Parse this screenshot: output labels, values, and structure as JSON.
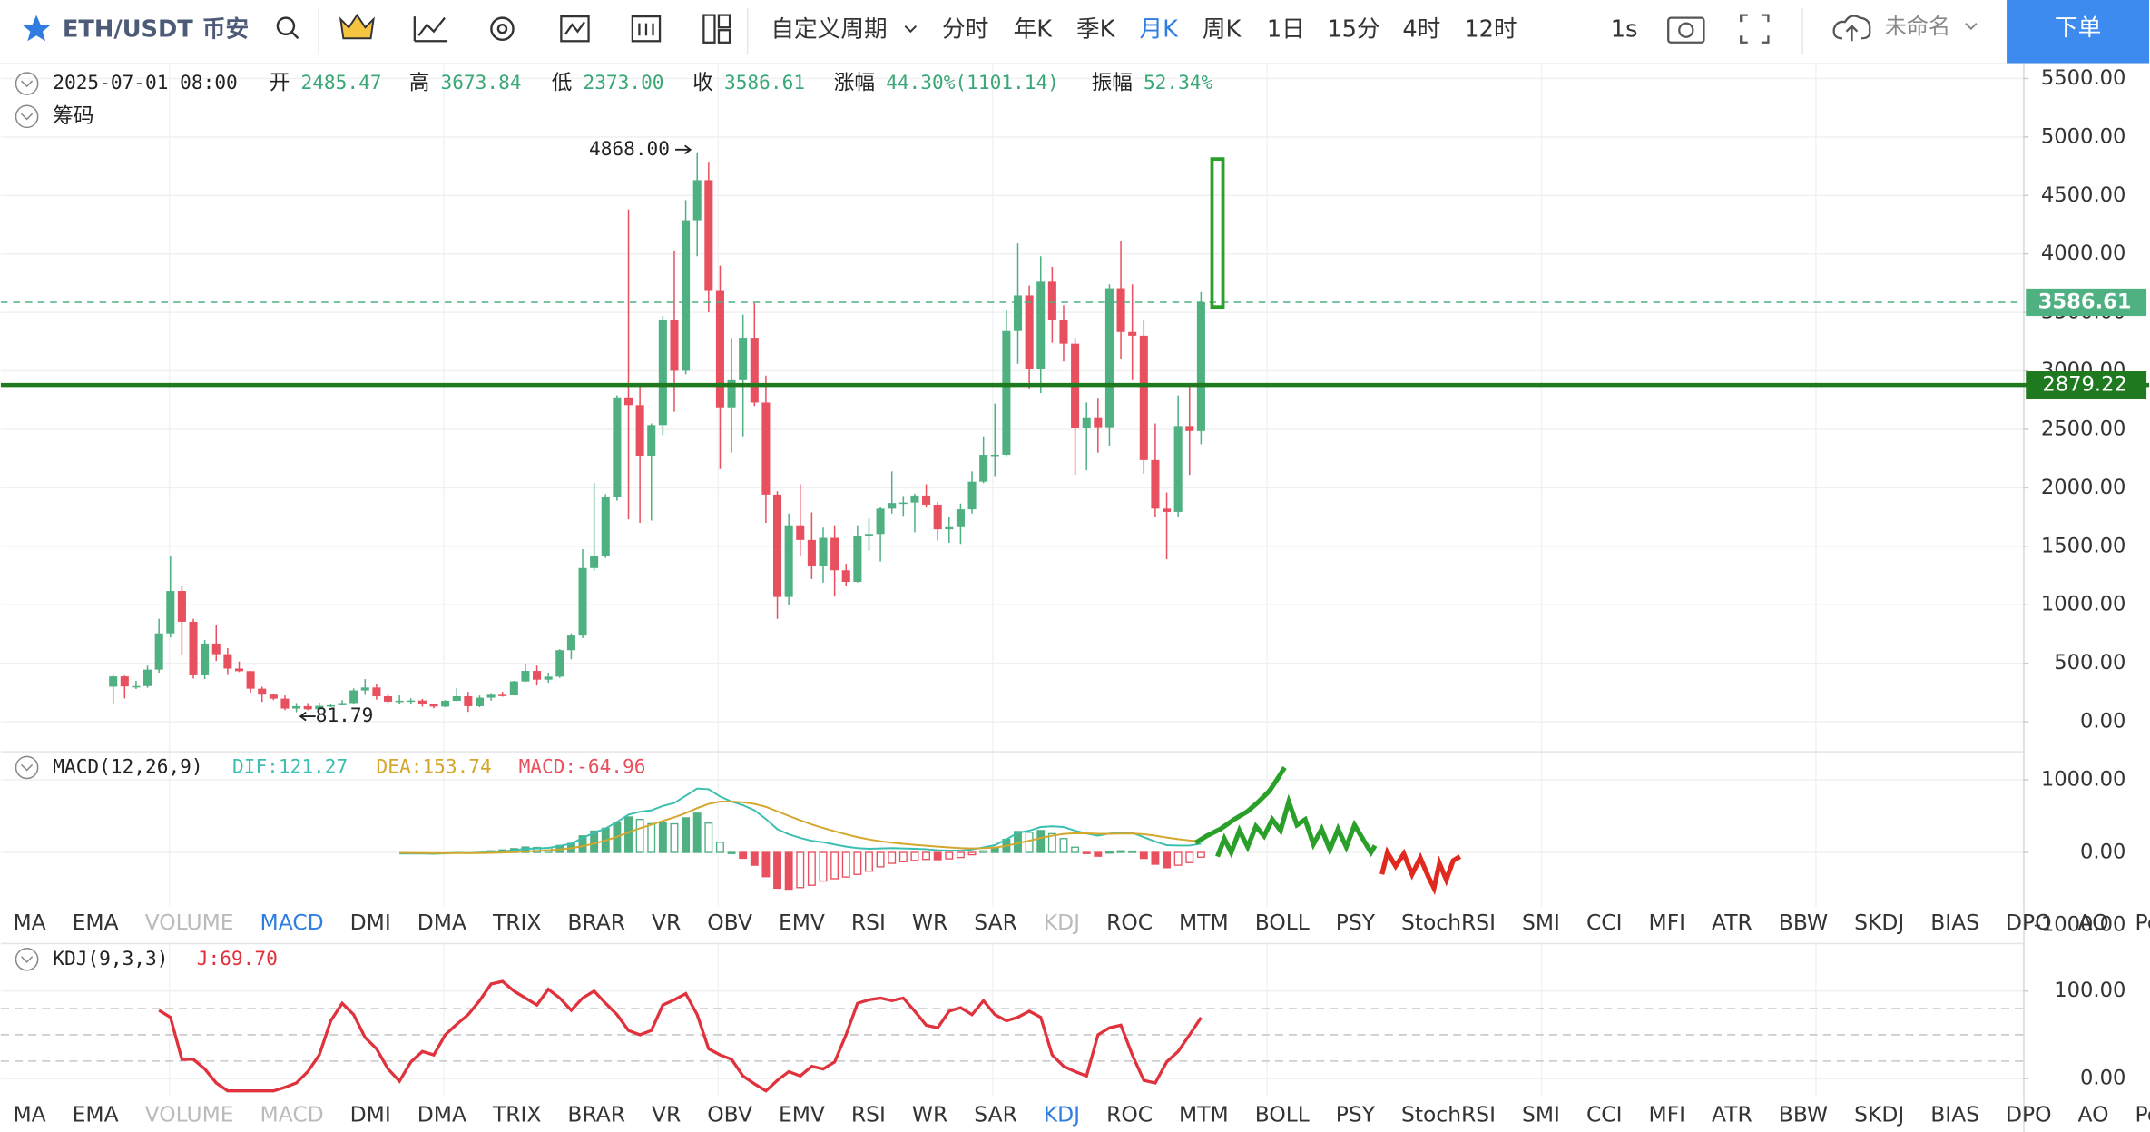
{
  "toolbar": {
    "symbol": "ETH/USDT",
    "exchange": "币安",
    "periods": [
      "自定义周期",
      "分时",
      "年K",
      "季K",
      "月K",
      "周K",
      "1日",
      "15分",
      "4时",
      "12时"
    ],
    "active_period": "月K",
    "interval_button": "1s",
    "layout_name": "未命名",
    "order_button": "下单"
  },
  "info": {
    "datetime": "2025-07-01 08:00",
    "fields": [
      {
        "label": "开",
        "value": "2485.47"
      },
      {
        "label": "高",
        "value": "3673.84"
      },
      {
        "label": "低",
        "value": "2373.00"
      },
      {
        "label": "收",
        "value": "3586.61"
      },
      {
        "label": "涨幅",
        "value": "44.30%(1101.14)"
      },
      {
        "label": "振幅",
        "value": "52.34%"
      }
    ],
    "chips_label": "筹码"
  },
  "price_pane": {
    "type": "candlestick",
    "up_color": "#4fb082",
    "down_color": "#e8505f",
    "ylim": [
      -250,
      5620
    ],
    "yticks": [
      {
        "value": 0,
        "label": "0.00"
      },
      {
        "value": 500,
        "label": "500.00"
      },
      {
        "value": 1000,
        "label": "1000.00"
      },
      {
        "value": 1500,
        "label": "1500.00"
      },
      {
        "value": 2000,
        "label": "2000.00"
      },
      {
        "value": 2500,
        "label": "2500.00"
      },
      {
        "value": 3000,
        "label": "3000.00"
      },
      {
        "value": 3500,
        "label": "3500.00"
      },
      {
        "value": 4000,
        "label": "4000.00"
      },
      {
        "value": 4500,
        "label": "4500.00"
      },
      {
        "value": 5000,
        "label": "5000.00"
      },
      {
        "value": 5500,
        "label": "5500.00"
      }
    ],
    "candles": [
      [
        300,
        400,
        150,
        388
      ],
      [
        388,
        395,
        200,
        302
      ],
      [
        302,
        350,
        280,
        305
      ],
      [
        305,
        480,
        290,
        446
      ],
      [
        446,
        880,
        420,
        756
      ],
      [
        756,
        1420,
        720,
        1118
      ],
      [
        1118,
        1160,
        570,
        855
      ],
      [
        855,
        880,
        370,
        397
      ],
      [
        397,
        700,
        365,
        669
      ],
      [
        669,
        830,
        520,
        578
      ],
      [
        578,
        630,
        400,
        455
      ],
      [
        455,
        515,
        425,
        433
      ],
      [
        433,
        435,
        250,
        283
      ],
      [
        283,
        300,
        170,
        232
      ],
      [
        232,
        235,
        185,
        198
      ],
      [
        198,
        225,
        100,
        113
      ],
      [
        113,
        160,
        81.79,
        133
      ],
      [
        133,
        160,
        100,
        107
      ],
      [
        107,
        165,
        100,
        136
      ],
      [
        136,
        150,
        125,
        141
      ],
      [
        141,
        185,
        140,
        160
      ],
      [
        160,
        285,
        155,
        268
      ],
      [
        268,
        365,
        230,
        293
      ],
      [
        293,
        320,
        190,
        218
      ],
      [
        218,
        240,
        160,
        172
      ],
      [
        172,
        225,
        150,
        180
      ],
      [
        180,
        200,
        150,
        182
      ],
      [
        182,
        195,
        130,
        152
      ],
      [
        152,
        155,
        115,
        130
      ],
      [
        130,
        185,
        125,
        179
      ],
      [
        179,
        290,
        175,
        218
      ],
      [
        218,
        255,
        85,
        133
      ],
      [
        133,
        225,
        125,
        206
      ],
      [
        206,
        245,
        180,
        231
      ],
      [
        231,
        255,
        215,
        226
      ],
      [
        226,
        350,
        225,
        345
      ],
      [
        345,
        490,
        340,
        435
      ],
      [
        435,
        480,
        310,
        360
      ],
      [
        360,
        420,
        335,
        386
      ],
      [
        386,
        620,
        375,
        612
      ],
      [
        612,
        755,
        535,
        737
      ],
      [
        737,
        1475,
        715,
        1314
      ],
      [
        1314,
        2040,
        1290,
        1417
      ],
      [
        1417,
        1945,
        1400,
        1918
      ],
      [
        1918,
        2790,
        1890,
        2773
      ],
      [
        2773,
        4380,
        1730,
        2707
      ],
      [
        2707,
        2890,
        1700,
        2275
      ],
      [
        2275,
        2550,
        1720,
        2536
      ],
      [
        2536,
        3470,
        2450,
        3433
      ],
      [
        3433,
        4030,
        2650,
        3001
      ],
      [
        3001,
        4460,
        2970,
        4288
      ],
      [
        4288,
        4868,
        3980,
        4631
      ],
      [
        4631,
        4780,
        3500,
        3683
      ],
      [
        3683,
        3900,
        2160,
        2688
      ],
      [
        2688,
        3280,
        2300,
        2920
      ],
      [
        2920,
        3480,
        2440,
        3283
      ],
      [
        3283,
        3580,
        2700,
        2729
      ],
      [
        2729,
        2960,
        1700,
        1942
      ],
      [
        1942,
        1970,
        880,
        1067
      ],
      [
        1067,
        1780,
        1000,
        1679
      ],
      [
        1679,
        2030,
        1420,
        1554
      ],
      [
        1554,
        1790,
        1220,
        1328
      ],
      [
        1328,
        1660,
        1190,
        1572
      ],
      [
        1572,
        1680,
        1070,
        1295
      ],
      [
        1295,
        1350,
        1160,
        1196
      ],
      [
        1196,
        1680,
        1190,
        1585
      ],
      [
        1585,
        1740,
        1460,
        1605
      ],
      [
        1605,
        1840,
        1370,
        1822
      ],
      [
        1822,
        2140,
        1780,
        1870
      ],
      [
        1870,
        1930,
        1760,
        1874
      ],
      [
        1874,
        1950,
        1620,
        1934
      ],
      [
        1934,
        2030,
        1830,
        1856
      ],
      [
        1856,
        1880,
        1550,
        1645
      ],
      [
        1645,
        1750,
        1530,
        1671
      ],
      [
        1671,
        1865,
        1520,
        1816
      ],
      [
        1816,
        2140,
        1780,
        2052
      ],
      [
        2052,
        2440,
        2040,
        2282
      ],
      [
        2282,
        2720,
        2100,
        2283
      ],
      [
        2283,
        3520,
        2270,
        3340
      ],
      [
        3340,
        4090,
        3060,
        3645
      ],
      [
        3645,
        3730,
        2850,
        3014
      ],
      [
        3014,
        3980,
        2810,
        3762
      ],
      [
        3762,
        3890,
        3240,
        3433
      ],
      [
        3433,
        3560,
        3080,
        3232
      ],
      [
        3232,
        3280,
        2110,
        2513
      ],
      [
        2513,
        2730,
        2150,
        2603
      ],
      [
        2603,
        2770,
        2300,
        2518
      ],
      [
        2518,
        3740,
        2360,
        3706
      ],
      [
        3706,
        4110,
        3100,
        3332
      ],
      [
        3332,
        3740,
        2920,
        3300
      ],
      [
        3300,
        3440,
        2120,
        2237
      ],
      [
        2237,
        2550,
        1750,
        1822
      ],
      [
        1822,
        1960,
        1390,
        1794
      ],
      [
        1794,
        2790,
        1750,
        2528
      ],
      [
        2528,
        2880,
        2110,
        2485.47
      ],
      [
        2485.47,
        3673.84,
        2373.0,
        3586.61
      ]
    ],
    "last_price": {
      "value": 3586.61,
      "label": "3586.61"
    },
    "horizontal_line": {
      "value": 2879.22,
      "label": "2879.22"
    },
    "annotations": [
      {
        "value": 4868,
        "label": "4868.00",
        "side": "high"
      },
      {
        "value": 81.79,
        "label": "81.79",
        "side": "low"
      }
    ]
  },
  "macd_pane": {
    "type": "macd",
    "legend": [
      "MACD(12,26,9)",
      "DIF:121.27",
      "DEA:153.74",
      "MACD:-64.96"
    ],
    "dif_color": "#3bbfb0",
    "dea_color": "#d4a72c",
    "up_color": "#4fb082",
    "down_color": "#e8505f",
    "ylim": [
      -1245,
      1396
    ],
    "yticks": [
      {
        "value": 1000,
        "label": "1000.00"
      },
      {
        "value": 0,
        "label": "0.00"
      },
      {
        "value": -1000,
        "label": "-1000.00"
      }
    ],
    "dif": [
      null,
      null,
      null,
      null,
      null,
      null,
      null,
      null,
      null,
      null,
      null,
      null,
      null,
      null,
      null,
      null,
      null,
      null,
      null,
      null,
      null,
      null,
      null,
      null,
      null,
      -15,
      -15,
      -15,
      -18,
      -12,
      -5,
      -10,
      -3,
      5,
      15,
      30,
      50,
      55,
      62,
      90,
      120,
      200,
      270,
      330,
      420,
      520,
      560,
      580,
      640,
      680,
      780,
      880,
      870,
      770,
      700,
      650,
      580,
      460,
      320,
      250,
      200,
      160,
      140,
      110,
      80,
      60,
      50,
      55,
      60,
      55,
      50,
      45,
      30,
      25,
      25,
      40,
      70,
      100,
      180,
      270,
      300,
      350,
      360,
      350,
      300,
      260,
      230,
      260,
      270,
      270,
      210,
      150,
      100,
      95,
      95,
      121.27
    ],
    "dea": [
      null,
      null,
      null,
      null,
      null,
      null,
      null,
      null,
      null,
      null,
      null,
      null,
      null,
      null,
      null,
      null,
      null,
      null,
      null,
      null,
      null,
      null,
      null,
      null,
      null,
      -5,
      -7,
      -9,
      -10,
      -11,
      -10,
      -10,
      -9,
      -6,
      -2,
      4,
      13,
      21,
      30,
      42,
      58,
      86,
      123,
      164,
      215,
      276,
      333,
      382,
      434,
      483,
      542,
      610,
      668,
      700,
      700,
      690,
      668,
      627,
      566,
      503,
      442,
      386,
      337,
      291,
      249,
      211,
      179,
      154,
      135,
      119,
      105,
      93,
      80,
      69,
      60,
      56,
      59,
      67,
      90,
      126,
      161,
      199,
      231,
      255,
      264,
      263,
      256,
      257,
      259,
      261,
      251,
      231,
      205,
      183,
      165,
      153.74
    ],
    "histogram": [
      null,
      null,
      null,
      null,
      null,
      null,
      null,
      null,
      null,
      null,
      null,
      null,
      null,
      null,
      null,
      null,
      null,
      null,
      null,
      null,
      null,
      null,
      null,
      null,
      null,
      null,
      null,
      null,
      null,
      null,
      null,
      null,
      null,
      22,
      34,
      52,
      74,
      68,
      64,
      96,
      124,
      228,
      294,
      332,
      410,
      488,
      454,
      396,
      412,
      394,
      476,
      540,
      404,
      140,
      0,
      -80,
      -176,
      -334,
      -492,
      -506,
      -484,
      -452,
      -394,
      -362,
      -338,
      -302,
      -258,
      -198,
      -150,
      -128,
      -110,
      -96,
      -100,
      -88,
      -70,
      -32,
      22,
      66,
      180,
      288,
      278,
      302,
      258,
      190,
      72,
      -6,
      -52,
      6,
      22,
      18,
      -82,
      -162,
      -210,
      -176,
      -140,
      -64.96
    ]
  },
  "kdj_pane": {
    "type": "line",
    "legend": [
      "KDJ(9,3,3)",
      "J:69.70"
    ],
    "color": "#e0323c",
    "ylim": [
      -61,
      155
    ],
    "yticks": [
      {
        "value": 100,
        "label": "100.00"
      },
      {
        "value": 0,
        "label": "0.00"
      }
    ],
    "levels": [
      80,
      50,
      20
    ],
    "j": [
      null,
      null,
      null,
      null,
      78,
      70,
      22,
      22,
      11,
      -5,
      -14,
      -14,
      -14,
      -14,
      -14,
      -10,
      -5,
      8,
      27,
      66,
      86,
      73,
      47,
      34,
      11,
      -3,
      19,
      31,
      27,
      50,
      62,
      73,
      89,
      108,
      111,
      100,
      92,
      84,
      102,
      92,
      78,
      92,
      100,
      86,
      73,
      55,
      50,
      55,
      84,
      90,
      97,
      73,
      34,
      27,
      22,
      3,
      -6,
      -14,
      -2,
      8,
      3,
      14,
      11,
      19,
      50,
      86,
      90,
      92,
      89,
      92,
      77,
      61,
      58,
      77,
      81,
      73,
      89,
      73,
      66,
      70,
      77,
      70,
      27,
      14,
      8,
      3,
      50,
      58,
      61,
      27,
      -2,
      -5,
      19,
      31,
      50,
      69.7
    ]
  },
  "indicator_tabs": {
    "items": [
      "MA",
      "EMA",
      "VOLUME",
      "MACD",
      "DMI",
      "DMA",
      "TRIX",
      "BRAR",
      "VR",
      "OBV",
      "EMV",
      "RSI",
      "WR",
      "SAR",
      "KDJ",
      "ROC",
      "MTM",
      "BOLL",
      "PSY",
      "StochRSI",
      "SMI",
      "CCI",
      "MFI",
      "ATR",
      "BBW",
      "SKDJ",
      "BIAS",
      "DPO",
      "AO",
      "Position"
    ],
    "rows": [
      {
        "active": "MACD",
        "muted": [
          "VOLUME",
          "KDJ"
        ]
      },
      {
        "active": "KDJ",
        "muted": [
          "VOLUME",
          "MACD"
        ]
      }
    ]
  }
}
